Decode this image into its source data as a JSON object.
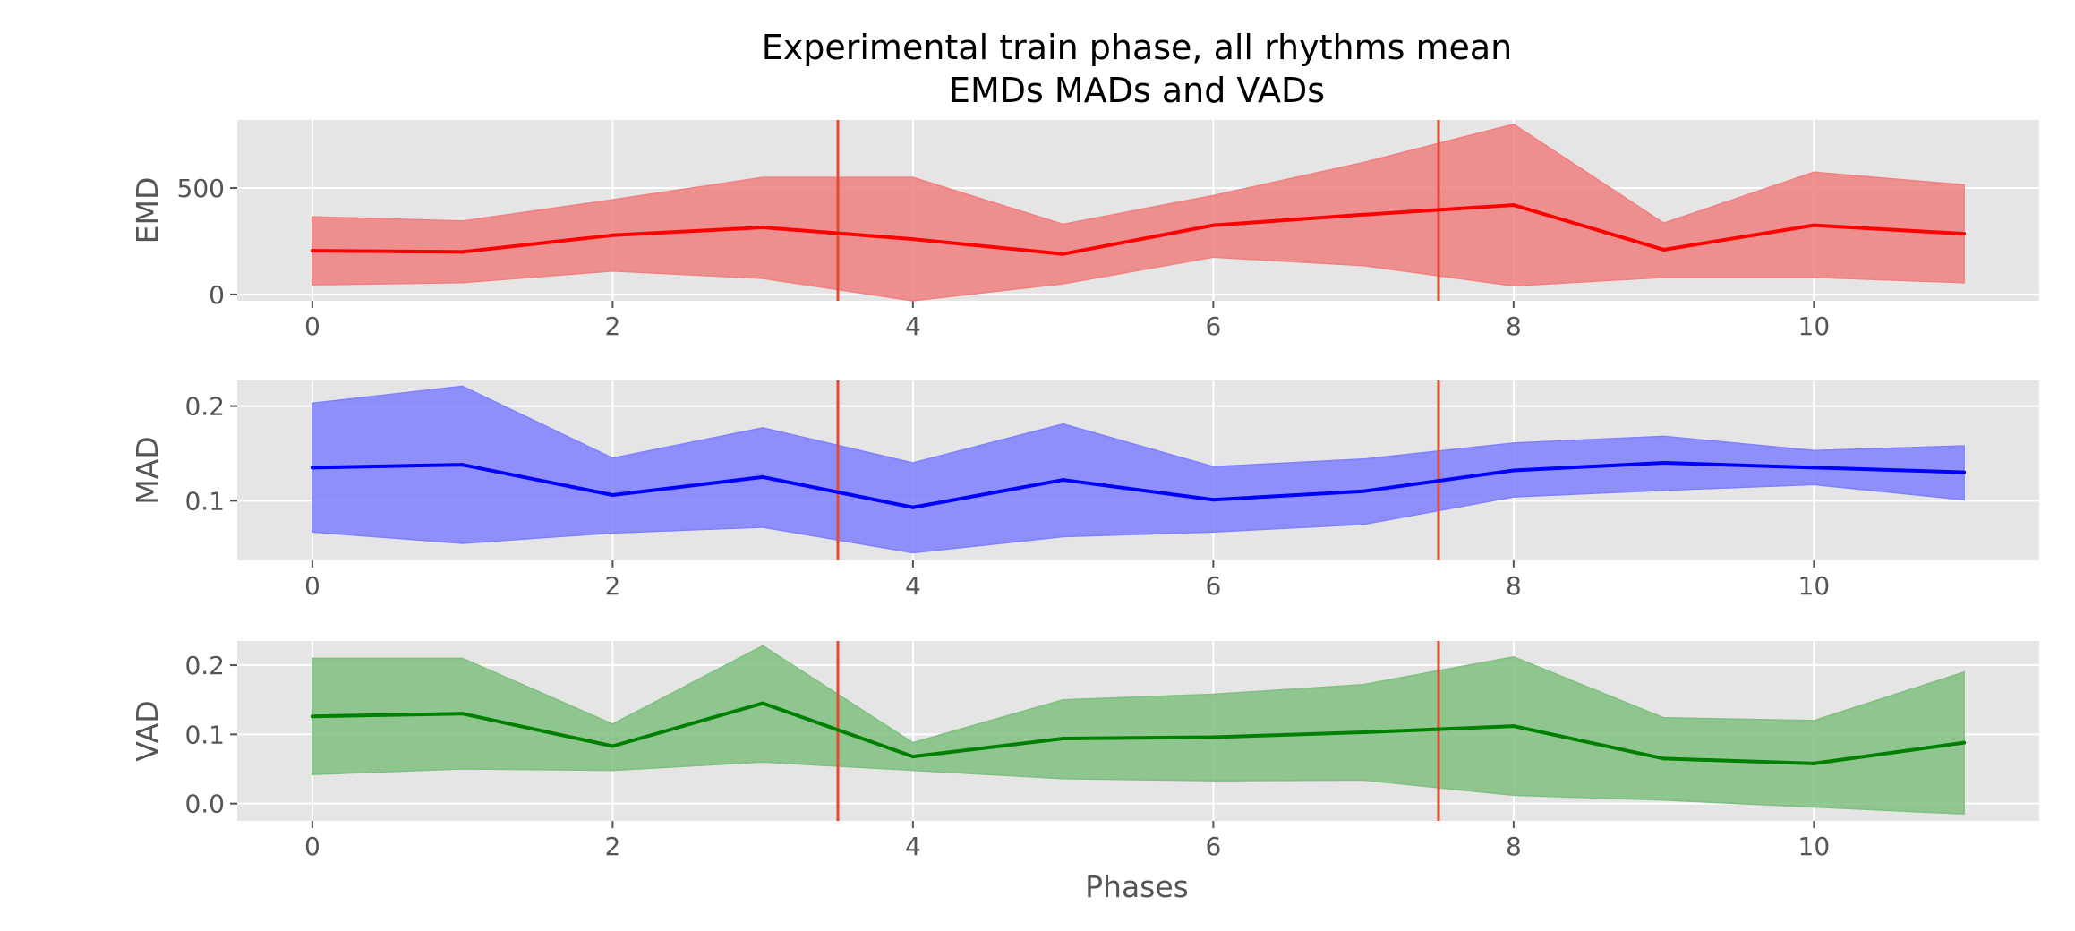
{
  "chart_data": {
    "type": "line",
    "title": "Experimental train phase, all rhythms mean\nEMDs MADs and VADs",
    "title_lines": [
      "Experimental train phase, all rhythms mean",
      "EMDs MADs and VADs"
    ],
    "xlabel": "Phases",
    "x": [
      0,
      1,
      2,
      3,
      4,
      5,
      6,
      7,
      8,
      9,
      10,
      11
    ],
    "x_ticks": [
      0,
      2,
      4,
      6,
      8,
      10
    ],
    "x_tick_labels": [
      "0",
      "2",
      "4",
      "6",
      "8",
      "10"
    ],
    "xlim": [
      -0.5,
      11.5
    ],
    "vertical_lines": [
      3.5,
      7.5
    ],
    "vertical_line_color": "#e24a33",
    "grid": true,
    "style": "ggplot",
    "panels": [
      {
        "ylabel": "EMD",
        "color": "#ff0000",
        "fill_color": "#f08080",
        "ylim": [
          -30,
          820
        ],
        "y_ticks": [
          0,
          500
        ],
        "y_tick_labels": [
          "0",
          "500"
        ],
        "mean": [
          205,
          200,
          278,
          315,
          260,
          190,
          325,
          375,
          420,
          210,
          325,
          285
        ],
        "upper": [
          365,
          345,
          445,
          550,
          550,
          330,
          465,
          620,
          800,
          335,
          575,
          515
        ],
        "lower": [
          45,
          55,
          110,
          75,
          -30,
          50,
          175,
          135,
          40,
          80,
          80,
          55
        ]
      },
      {
        "ylabel": "MAD",
        "color": "#0000ff",
        "fill_color": "#8080ff",
        "ylim": [
          0.037,
          0.227
        ],
        "y_ticks": [
          0.1,
          0.2
        ],
        "y_tick_labels": [
          "0.1",
          "0.2"
        ],
        "mean": [
          0.135,
          0.138,
          0.106,
          0.125,
          0.093,
          0.122,
          0.101,
          0.11,
          0.132,
          0.14,
          0.135,
          0.13
        ],
        "upper": [
          0.203,
          0.221,
          0.145,
          0.177,
          0.14,
          0.181,
          0.136,
          0.144,
          0.161,
          0.168,
          0.153,
          0.158
        ],
        "lower": [
          0.067,
          0.055,
          0.066,
          0.072,
          0.045,
          0.062,
          0.067,
          0.075,
          0.104,
          0.111,
          0.117,
          0.101
        ]
      },
      {
        "ylabel": "VAD",
        "color": "#008000",
        "fill_color": "#80bf80",
        "ylim": [
          -0.025,
          0.235
        ],
        "y_ticks": [
          0.0,
          0.1,
          0.2
        ],
        "y_tick_labels": [
          "0.0",
          "0.1",
          "0.2"
        ],
        "mean": [
          0.126,
          0.13,
          0.083,
          0.145,
          0.068,
          0.094,
          0.096,
          0.103,
          0.112,
          0.065,
          0.058,
          0.088
        ],
        "upper": [
          0.21,
          0.21,
          0.115,
          0.228,
          0.088,
          0.15,
          0.158,
          0.172,
          0.212,
          0.124,
          0.12,
          0.19
        ],
        "lower": [
          0.042,
          0.05,
          0.048,
          0.06,
          0.048,
          0.036,
          0.033,
          0.034,
          0.012,
          0.005,
          -0.005,
          -0.015
        ]
      }
    ]
  }
}
